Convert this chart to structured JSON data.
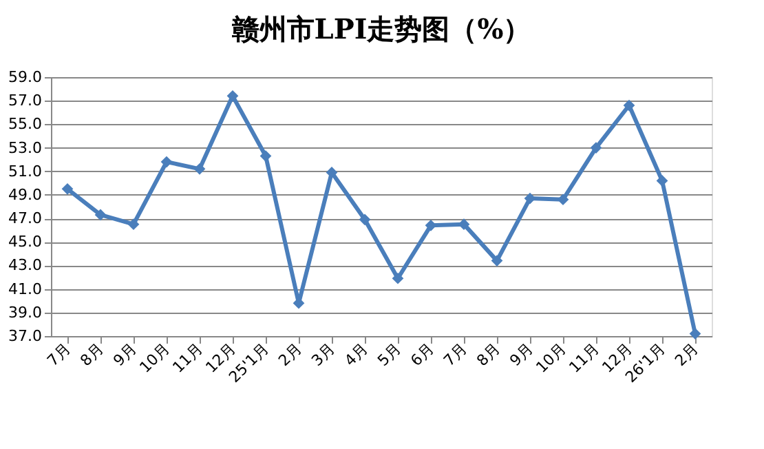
{
  "chart_data": {
    "type": "line",
    "title": "赣州市LPI走势图（%）",
    "categories": [
      "7月",
      "8月",
      "9月",
      "10月",
      "11月",
      "12月",
      "25'1月",
      "2月",
      "3月",
      "4月",
      "5月",
      "6月",
      "7月",
      "8月",
      "9月",
      "10月",
      "11月",
      "12月",
      "26'1月",
      "2月"
    ],
    "series": [
      {
        "color": "#4a7ebb",
        "values": [
          49.5,
          47.3,
          46.5,
          51.8,
          51.2,
          57.4,
          52.3,
          39.8,
          50.9,
          46.9,
          41.9,
          46.4,
          46.5,
          43.4,
          48.7,
          48.6,
          53.0,
          56.6,
          50.2,
          37.2
        ]
      }
    ],
    "ylim": [
      37,
      59
    ],
    "yticks": [
      {
        "value": 37,
        "label": "37.0"
      },
      {
        "value": 39,
        "label": "39.0"
      },
      {
        "value": 41,
        "label": "41.0"
      },
      {
        "value": 43,
        "label": "43.0"
      },
      {
        "value": 45,
        "label": "45.0"
      },
      {
        "value": 47,
        "label": "47.0"
      },
      {
        "value": 49,
        "label": "49.0"
      },
      {
        "value": 51,
        "label": "51.0"
      },
      {
        "value": 53,
        "label": "53.0"
      },
      {
        "value": 55,
        "label": "55.0"
      },
      {
        "value": 57,
        "label": "57.0"
      },
      {
        "value": 59,
        "label": "59.0"
      }
    ],
    "grid": "y",
    "marker": "diamond",
    "line_style": "solid"
  }
}
